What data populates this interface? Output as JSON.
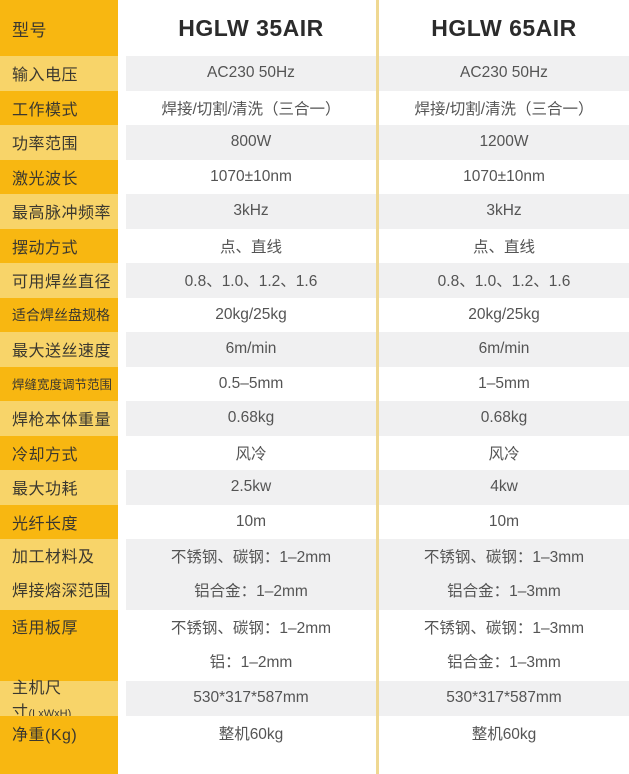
{
  "colors": {
    "gold_dark": "#F8B711",
    "gold_light": "#F8D469",
    "row_gray": "#F0F0F1",
    "row_white": "#FFFFFF",
    "divider_yellow": "#EFD892",
    "label_text": "#3B382F",
    "value_text": "#545454",
    "header_text": "#2B2B2B"
  },
  "header": {
    "label": "型号",
    "models": [
      "HGLW 35AIR",
      "HGLW 65AIR"
    ]
  },
  "rows": [
    {
      "label": [
        "输入电压"
      ],
      "zebra": "gray",
      "values": [
        [
          "AC230 50Hz"
        ],
        [
          "AC230 50Hz"
        ]
      ]
    },
    {
      "label": [
        "工作模式"
      ],
      "zebra": "white",
      "values": [
        [
          "焊接/切割/清洗（三合一）"
        ],
        [
          "焊接/切割/清洗（三合一）"
        ]
      ]
    },
    {
      "label": [
        "功率范围"
      ],
      "zebra": "gray",
      "values": [
        [
          "800W"
        ],
        [
          "1200W"
        ]
      ]
    },
    {
      "label": [
        "激光波长"
      ],
      "zebra": "white",
      "values": [
        [
          "1070±10nm"
        ],
        [
          "1070±10nm"
        ]
      ]
    },
    {
      "label": [
        "最高脉冲频率"
      ],
      "zebra": "gray",
      "values": [
        [
          "3kHz"
        ],
        [
          "3kHz"
        ]
      ]
    },
    {
      "label": [
        "摆动方式"
      ],
      "zebra": "white",
      "values": [
        [
          "点、直线"
        ],
        [
          "点、直线"
        ]
      ]
    },
    {
      "label": [
        "可用焊丝直径"
      ],
      "zebra": "gray",
      "values": [
        [
          "0.8、1.0、1.2、1.6"
        ],
        [
          "0.8、1.0、1.2、1.6"
        ]
      ]
    },
    {
      "label": [
        "适合焊丝盘规格"
      ],
      "size": "mid",
      "zebra": "white",
      "values": [
        [
          "20kg/25kg"
        ],
        [
          "20kg/25kg"
        ]
      ]
    },
    {
      "label": [
        "最大送丝速度"
      ],
      "zebra": "gray",
      "values": [
        [
          "6m/min"
        ],
        [
          "6m/min"
        ]
      ]
    },
    {
      "label": [
        "焊缝宽度调节范围"
      ],
      "size": "small",
      "zebra": "white",
      "values": [
        [
          "0.5–5mm"
        ],
        [
          "1–5mm"
        ]
      ]
    },
    {
      "label": [
        "焊枪本体重量"
      ],
      "zebra": "gray",
      "values": [
        [
          "0.68kg"
        ],
        [
          "0.68kg"
        ]
      ]
    },
    {
      "label": [
        "冷却方式"
      ],
      "zebra": "white",
      "values": [
        [
          "风冷"
        ],
        [
          "风冷"
        ]
      ]
    },
    {
      "label": [
        "最大功耗"
      ],
      "zebra": "gray",
      "values": [
        [
          "2.5kw"
        ],
        [
          "4kw"
        ]
      ]
    },
    {
      "label": [
        "光纤长度"
      ],
      "zebra": "white",
      "values": [
        [
          "10m"
        ],
        [
          "10m"
        ]
      ]
    },
    {
      "label": [
        "加工材料及",
        "焊接熔深范围"
      ],
      "zebra": "gray",
      "values": [
        [
          "不锈钢、碳钢：1–2mm",
          "铝合金：1–2mm"
        ],
        [
          "不锈钢、碳钢：1–3mm",
          "铝合金：1–3mm"
        ]
      ]
    },
    {
      "label": [
        "适用板厚"
      ],
      "label_align": "top",
      "zebra": "white",
      "values": [
        [
          "不锈钢、碳钢：1–2mm",
          "铝：1–2mm"
        ],
        [
          "不锈钢、碳钢：1–3mm",
          "铝合金：1–3mm"
        ]
      ]
    },
    {
      "label": [
        "主机尺寸"
      ],
      "label_suffix": "(LxWxH)",
      "zebra": "gray",
      "values": [
        [
          "530*317*587mm"
        ],
        [
          "530*317*587mm"
        ]
      ]
    },
    {
      "label": [
        "净重(Kg)"
      ],
      "zebra": "white",
      "values": [
        [
          "整机60kg"
        ],
        [
          "整机60kg"
        ]
      ]
    }
  ]
}
